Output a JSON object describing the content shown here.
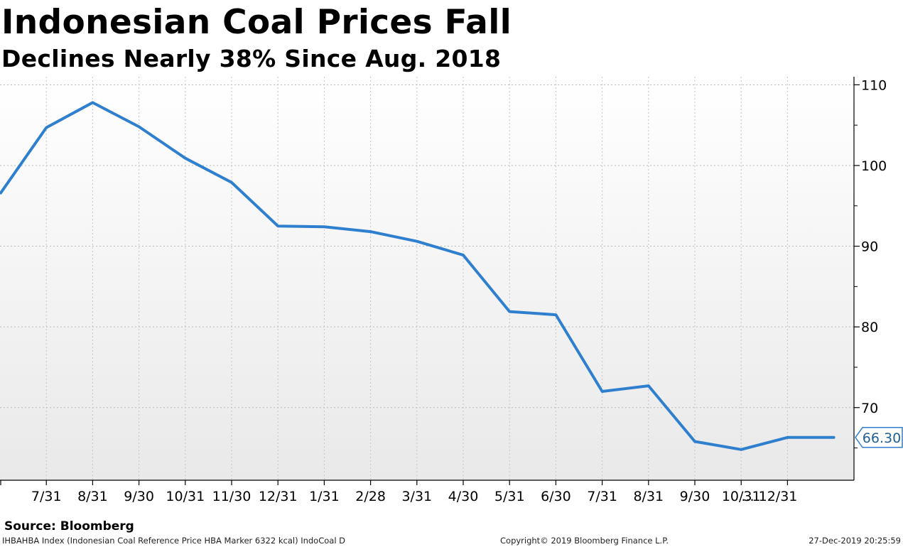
{
  "title": "Indonesian Coal Prices Fall",
  "subtitle": "Declines Nearly 38% Since Aug. 2018",
  "source": "Source: Bloomberg",
  "footer": {
    "left": "IHBAHBA Index (Indonesian Coal Reference Price HBA Marker 6322 kcal) IndoCoal  D",
    "middle": "Copyright© 2019 Bloomberg Finance L.P.",
    "right": "27-Dec-2019 20:25:59"
  },
  "colors": {
    "line": "#2f7fcf",
    "label_border": "#2f7fcf",
    "label_text": "#1f5f96"
  },
  "chart_data": {
    "type": "line",
    "title": "Indonesian Coal Prices Fall",
    "subtitle": "Declines Nearly 38% Since Aug. 2018",
    "xlabel": "",
    "ylabel": "",
    "grid": true,
    "y_axis_side": "right",
    "ylim": [
      61,
      111
    ],
    "yticks": [
      70,
      80,
      90,
      100,
      110
    ],
    "x_tick_labels": [
      "7/31",
      "8/31",
      "9/30",
      "10/31",
      "11/30",
      "12/31",
      "1/31",
      "2/28",
      "3/31",
      "4/30",
      "5/31",
      "6/30",
      "7/31",
      "8/31",
      "9/30",
      "10/31",
      "... 12/31"
    ],
    "series": [
      {
        "name": "IHBAHBA Index",
        "x": [
          "6/30",
          "7/31",
          "8/31",
          "9/30",
          "10/31",
          "11/30",
          "12/31",
          "1/31",
          "2/28",
          "3/31",
          "4/30",
          "5/31",
          "6/30",
          "7/31",
          "8/31",
          "9/30",
          "10/31",
          "11/30",
          "12/31"
        ],
        "values": [
          96.6,
          104.7,
          107.8,
          104.8,
          100.9,
          97.9,
          92.5,
          92.4,
          91.8,
          90.6,
          88.9,
          81.9,
          81.5,
          72.0,
          72.7,
          65.8,
          64.8,
          66.3,
          66.3
        ]
      }
    ],
    "last_value_label": "66.30"
  }
}
